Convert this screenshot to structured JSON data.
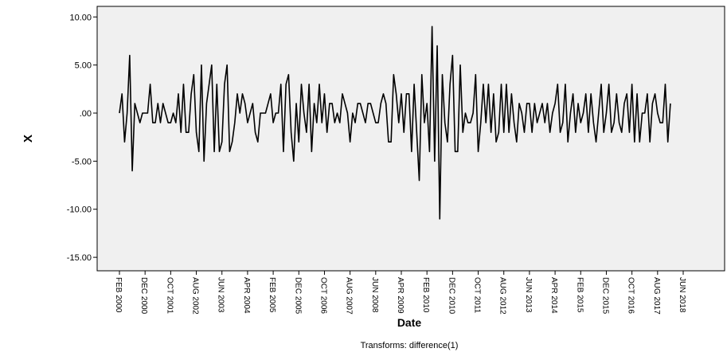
{
  "chart_data": {
    "type": "line",
    "y_label": "X",
    "x_label": "Date",
    "footnote": "Transforms: difference(1)",
    "categories": [
      "FEB 2000",
      null,
      null,
      null,
      null,
      null,
      null,
      null,
      null,
      null,
      "DEC 2000",
      null,
      null,
      null,
      null,
      null,
      null,
      null,
      null,
      null,
      "OCT 2001",
      null,
      null,
      null,
      null,
      null,
      null,
      null,
      null,
      null,
      "AUG 2002",
      null,
      null,
      null,
      null,
      null,
      null,
      null,
      null,
      null,
      "JUN 2003",
      null,
      null,
      null,
      null,
      null,
      null,
      null,
      null,
      null,
      "APR 2004",
      null,
      null,
      null,
      null,
      null,
      null,
      null,
      null,
      null,
      "FEB 2005",
      null,
      null,
      null,
      null,
      null,
      null,
      null,
      null,
      null,
      "DEC 2005",
      null,
      null,
      null,
      null,
      null,
      null,
      null,
      null,
      null,
      "OCT 2006",
      null,
      null,
      null,
      null,
      null,
      null,
      null,
      null,
      null,
      "AUG 2007",
      null,
      null,
      null,
      null,
      null,
      null,
      null,
      null,
      null,
      "JUN 2008",
      null,
      null,
      null,
      null,
      null,
      null,
      null,
      null,
      null,
      "APR 2009",
      null,
      null,
      null,
      null,
      null,
      null,
      null,
      null,
      null,
      "FEB 2010",
      null,
      null,
      null,
      null,
      null,
      null,
      null,
      null,
      null,
      "DEC 2010",
      null,
      null,
      null,
      null,
      null,
      null,
      null,
      null,
      null,
      "OCT 2011",
      null,
      null,
      null,
      null,
      null,
      null,
      null,
      null,
      null,
      "AUG 2012",
      null,
      null,
      null,
      null,
      null,
      null,
      null,
      null,
      null,
      "JUN 2013",
      null,
      null,
      null,
      null,
      null,
      null,
      null,
      null,
      null,
      "APR 2014",
      null,
      null,
      null,
      null,
      null,
      null,
      null,
      null,
      null,
      "FEB 2015",
      null,
      null,
      null,
      null,
      null,
      null,
      null,
      null,
      null,
      "DEC 2015",
      null,
      null,
      null,
      null,
      null,
      null,
      null,
      null,
      null,
      "OCT 2016",
      null,
      null,
      null,
      null,
      null,
      null,
      null,
      null,
      null,
      "AUG 2017",
      null,
      null,
      null,
      null,
      null,
      null,
      null,
      null,
      null,
      "JUN 2018"
    ],
    "values": [
      0,
      2,
      -3,
      0,
      6,
      -6,
      1,
      0,
      -1,
      0,
      0,
      0,
      3,
      -1,
      -1,
      1,
      -1,
      1,
      0,
      -1,
      -1,
      0,
      -1,
      2,
      -2,
      3,
      -2,
      -2,
      2,
      4,
      -2,
      -4,
      5,
      -5,
      1,
      3,
      5,
      -4,
      3,
      -4,
      -3,
      3,
      5,
      -4,
      -3,
      -1,
      2,
      0,
      2,
      1,
      -1,
      0,
      1,
      -2,
      -3,
      0,
      0,
      0,
      1,
      2,
      -1,
      0,
      0,
      3,
      -4,
      3,
      4,
      -2,
      -5,
      1,
      -3,
      3,
      0,
      -2,
      3,
      -4,
      1,
      -1,
      3,
      -1,
      2,
      -2,
      1,
      1,
      -1,
      0,
      -1,
      2,
      1,
      0,
      -3,
      0,
      -1,
      1,
      1,
      0,
      -1,
      1,
      1,
      0,
      -1,
      -1,
      1,
      2,
      1,
      -3,
      -3,
      4,
      2,
      -1,
      2,
      -2,
      2,
      2,
      -4,
      3,
      -2,
      -7,
      4,
      -1,
      1,
      -4,
      9,
      -5,
      7,
      -11,
      4,
      -1,
      -3,
      3,
      6,
      -4,
      -4,
      5,
      -2,
      0,
      -1,
      -1,
      0,
      4,
      -4,
      -1,
      3,
      -1,
      3,
      -2,
      2,
      -3,
      -2,
      3,
      -2,
      3,
      -2,
      2,
      -1,
      -3,
      1,
      0,
      -2,
      1,
      1,
      -2,
      1,
      -1,
      0,
      1,
      -1,
      1,
      -2,
      0,
      1,
      3,
      -2,
      -1,
      3,
      -3,
      0,
      2,
      -2,
      1,
      -1,
      0,
      2,
      -2,
      2,
      -1,
      -3,
      0,
      3,
      -2,
      0,
      3,
      -2,
      -1,
      2,
      -1,
      -2,
      1,
      2,
      -2,
      3,
      -3,
      2,
      -3,
      0,
      0,
      2,
      -3,
      1,
      2,
      0,
      -1,
      -1,
      3,
      -3,
      1,
      null,
      null,
      null,
      null,
      null
    ],
    "color": "#000000",
    "ylim": [
      -16.4,
      11.1
    ],
    "yticks": [
      {
        "value": 10,
        "label": "10.00"
      },
      {
        "value": 5,
        "label": "5.00"
      },
      {
        "value": 0,
        "label": ".00"
      },
      {
        "value": -5,
        "label": "-5.00"
      },
      {
        "value": -10,
        "label": "-10.00"
      },
      {
        "value": -15,
        "label": "-15.00"
      }
    ],
    "grid": false
  }
}
